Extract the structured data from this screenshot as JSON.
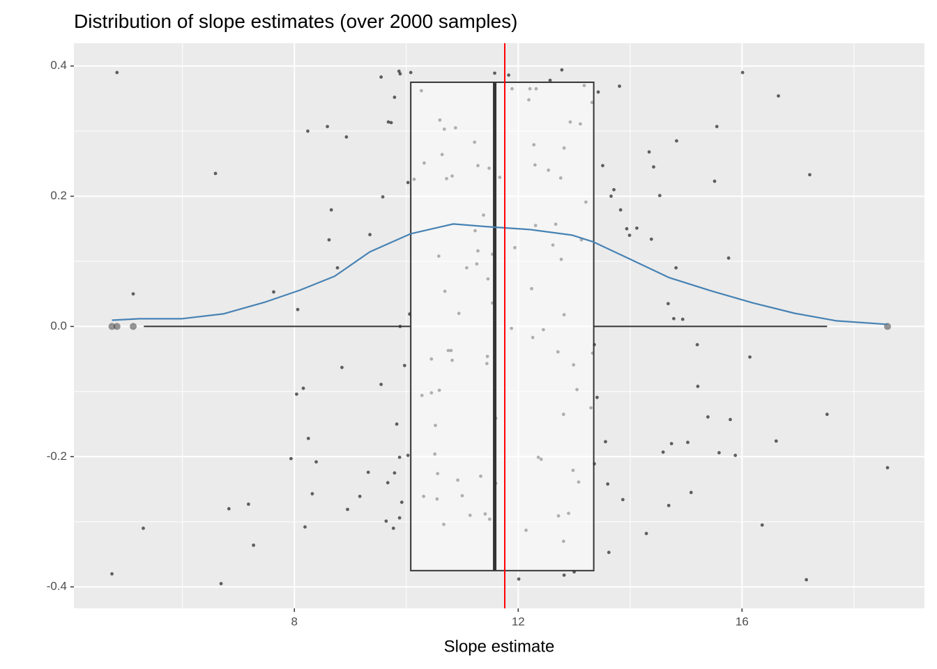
{
  "chart_data": {
    "type": "boxplot",
    "title": "Distribution of slope estimates (over 2000 samples)",
    "xlabel": "Slope estimate",
    "xlim": [
      4.06,
      19.26
    ],
    "ylim": [
      -0.433,
      0.435
    ],
    "xticks": [
      8,
      12,
      16
    ],
    "yticks": [
      0.4,
      0.2,
      {
        "value": 0,
        "label": "0.0"
      },
      -0.2,
      -0.4
    ],
    "x_minor_grid": [
      6,
      10,
      14,
      18
    ],
    "y_minor_grid": [
      -0.3,
      -0.1,
      0.1,
      0.3
    ],
    "grid": true,
    "box": {
      "q1": 10.08,
      "median": 11.58,
      "q3": 13.35,
      "whisker_low": 5.31,
      "whisker_high": 17.52,
      "outliers": [
        4.74,
        4.83,
        5.12,
        18.6
      ],
      "center": 0,
      "width": 0.75,
      "color": "#333333"
    },
    "mean_line": {
      "value": 11.76,
      "color": "#ff0000"
    },
    "density": {
      "color": "#4682b4",
      "x": [
        4.74,
        5.23,
        5.98,
        6.73,
        7.48,
        8.1,
        8.72,
        9.35,
        10.08,
        10.84,
        11.46,
        12.21,
        12.96,
        13.35,
        13.96,
        14.7,
        15.45,
        16.2,
        16.95,
        17.69,
        18.6
      ],
      "values": [
        0.0096,
        0.0118,
        0.0118,
        0.0193,
        0.0375,
        0.0557,
        0.0771,
        0.1146,
        0.1424,
        0.1574,
        0.1531,
        0.1488,
        0.1403,
        0.1296,
        0.1049,
        0.0749,
        0.0546,
        0.036,
        0.02,
        0.0086,
        0.0032
      ]
    },
    "points": {
      "color": "#000000",
      "x": [
        4.83,
        4.74,
        5.12,
        5.3,
        6.59,
        6.69,
        6.83,
        7.18,
        7.27,
        7.63,
        7.94,
        8.04,
        8.06,
        8.16,
        8.19,
        8.24,
        8.25,
        8.32,
        8.39,
        8.59,
        8.62,
        8.66,
        8.77,
        8.85,
        8.93,
        8.95,
        9.17,
        9.32,
        9.35,
        9.55,
        9.55,
        9.58,
        9.64,
        9.67,
        9.68,
        9.73,
        9.77,
        9.79,
        9.79,
        9.83,
        9.87,
        9.88,
        9.88,
        9.89,
        9.89,
        9.92,
        9.97,
        10.03,
        10.03,
        10.06,
        10.08,
        10.14,
        10.27,
        10.28,
        10.32,
        10.31,
        10.45,
        10.45,
        10.51,
        10.52,
        10.55,
        10.56,
        10.58,
        10.6,
        10.59,
        10.64,
        10.67,
        10.68,
        10.69,
        10.72,
        10.75,
        10.8,
        10.82,
        10.82,
        10.88,
        10.92,
        10.94,
        11.0,
        11.08,
        11.14,
        11.22,
        11.23,
        11.28,
        11.28,
        11.26,
        11.33,
        11.38,
        11.41,
        11.44,
        11.45,
        11.48,
        11.46,
        11.49,
        11.54,
        11.54,
        11.58,
        11.6,
        11.6,
        11.67,
        11.83,
        11.89,
        11.88,
        11.94,
        12.01,
        12.14,
        12.19,
        12.21,
        12.24,
        12.26,
        12.28,
        12.3,
        12.32,
        12.31,
        12.36,
        12.41,
        12.45,
        12.54,
        12.57,
        12.62,
        12.67,
        12.71,
        12.72,
        12.76,
        12.77,
        12.78,
        12.81,
        12.81,
        12.82,
        12.82,
        12.82,
        12.9,
        12.93,
        12.98,
        12.99,
        13.0,
        13.05,
        13.08,
        13.11,
        13.13,
        13.18,
        13.21,
        13.3,
        13.32,
        13.33,
        13.36,
        13.36,
        13.41,
        13.43,
        13.51,
        13.56,
        13.6,
        13.62,
        13.66,
        13.71,
        13.81,
        13.83,
        13.87,
        13.94,
        13.99,
        14.12,
        14.29,
        14.34,
        14.38,
        14.42,
        14.53,
        14.59,
        14.68,
        14.69,
        14.74,
        14.78,
        14.82,
        14.83,
        14.94,
        15.03,
        15.09,
        15.2,
        15.21,
        15.39,
        15.51,
        15.55,
        15.59,
        15.76,
        15.79,
        15.88,
        16.01,
        16.14,
        16.36,
        16.61,
        16.65,
        17.15,
        17.21,
        17.52,
        18.6
      ],
      "y": [
        0.39,
        -0.38,
        0.05,
        -0.31,
        0.235,
        -0.395,
        -0.28,
        -0.273,
        -0.336,
        0.053,
        -0.203,
        -0.104,
        0.026,
        -0.095,
        -0.308,
        0.3,
        -0.172,
        -0.257,
        -0.208,
        0.307,
        0.133,
        0.179,
        0.09,
        -0.063,
        0.291,
        -0.281,
        -0.261,
        -0.224,
        0.141,
        0.383,
        -0.089,
        0.199,
        -0.299,
        -0.24,
        0.314,
        0.313,
        -0.31,
        -0.225,
        0.352,
        -0.15,
        0.392,
        -0.294,
        -0.201,
        0.388,
        0,
        -0.27,
        -0.06,
        0.221,
        -0.198,
        0.019,
        0.39,
        0.226,
        0.362,
        -0.106,
        0.251,
        -0.261,
        -0.05,
        -0.102,
        -0.196,
        -0.152,
        -0.265,
        -0.226,
        0.108,
        0.317,
        -0.098,
        0.264,
        -0.304,
        0.303,
        0.054,
        0.227,
        -0.037,
        -0.037,
        0.231,
        -0.052,
        0.305,
        -0.236,
        0.02,
        -0.26,
        0.09,
        -0.29,
        0.283,
        0.147,
        0.247,
        0.116,
        0.096,
        -0.23,
        0.171,
        -0.288,
        -0.057,
        -0.046,
        0.243,
        0.073,
        -0.296,
        0.036,
        0.111,
        0.389,
        -0.141,
        -0.241,
        0.229,
        0.386,
        0.365,
        -0.003,
        0.121,
        -0.388,
        -0.313,
        0.348,
        0.365,
        0.058,
        -0.017,
        0.279,
        0.248,
        0.365,
        0.155,
        -0.201,
        -0.204,
        -0.005,
        0.24,
        0.378,
        0.125,
        0.157,
        -0.039,
        -0.291,
        0.228,
        0.103,
        0.394,
        -0.135,
        -0.33,
        0.274,
        0.018,
        -0.382,
        -0.287,
        0.314,
        -0.221,
        -0.059,
        -0.377,
        -0.097,
        -0.239,
        0.311,
        0.133,
        0.37,
        0.191,
        -0.125,
        0.344,
        -0.041,
        -0.028,
        -0.211,
        -0.109,
        0.36,
        0.247,
        -0.177,
        -0.242,
        -0.347,
        0.2,
        0.21,
        0.369,
        0.179,
        -0.266,
        0.15,
        0.14,
        0.151,
        -0.318,
        0.268,
        0.134,
        0.245,
        0.201,
        -0.193,
        0.035,
        -0.275,
        -0.18,
        0.012,
        0.09,
        0.285,
        0.011,
        -0.178,
        -0.255,
        -0.028,
        -0.092,
        -0.139,
        0.223,
        0.307,
        -0.194,
        0.105,
        -0.143,
        -0.198,
        0.39,
        -0.047,
        -0.305,
        -0.176,
        0.354,
        -0.389,
        0.233,
        -0.135,
        -0.217
      ]
    }
  }
}
